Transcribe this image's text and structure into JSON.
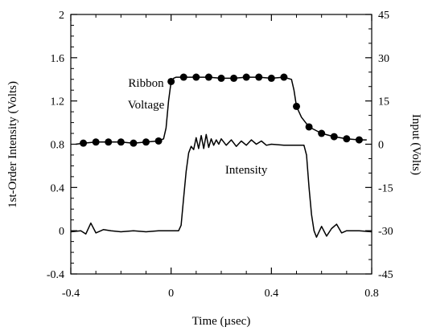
{
  "chart_data": {
    "type": "line",
    "xlabel": "Time (µsec)",
    "ylabel": "1st-Order Intensity (Volts)",
    "y2label": "Input (Volts)",
    "xlim": [
      -0.4,
      0.8
    ],
    "ylim": [
      -0.4,
      2.0
    ],
    "y2lim": [
      -45,
      45
    ],
    "x_ticks": [
      -0.4,
      0,
      0.4,
      0.8
    ],
    "x_tick_labels": [
      "-0.4",
      "0",
      "0.4",
      "0.8"
    ],
    "y_ticks": [
      -0.4,
      0,
      0.4,
      0.8,
      1.2,
      1.6,
      2.0
    ],
    "y_tick_labels": [
      "-0.4",
      "0",
      "0.4",
      "0.8",
      "1.2",
      "1.6",
      "2"
    ],
    "y2_ticks": [
      -45,
      -30,
      -15,
      0,
      15,
      30,
      45
    ],
    "y2_tick_labels": [
      "-45",
      "-30",
      "-15",
      "0",
      "15",
      "30",
      "45"
    ],
    "grid": false,
    "annotations": [
      {
        "text": "Ribbon",
        "x": -0.1,
        "y": 1.33
      },
      {
        "text": "Voltage",
        "x": -0.1,
        "y": 1.13
      },
      {
        "text": "Intensity",
        "x": 0.3,
        "y": 0.53
      }
    ],
    "series": [
      {
        "name": "Ribbon Voltage",
        "axis": "left",
        "marker": "circle",
        "x": [
          -0.38,
          -0.35,
          -0.3,
          -0.25,
          -0.2,
          -0.15,
          -0.1,
          -0.05,
          -0.03,
          -0.02,
          -0.01,
          0.0,
          0.01,
          0.02,
          0.05,
          0.1,
          0.15,
          0.2,
          0.25,
          0.3,
          0.35,
          0.4,
          0.45,
          0.48,
          0.49,
          0.5,
          0.52,
          0.55,
          0.6,
          0.65,
          0.7,
          0.75,
          0.78
        ],
        "y": [
          0.8,
          0.81,
          0.82,
          0.82,
          0.82,
          0.81,
          0.82,
          0.83,
          0.85,
          0.95,
          1.2,
          1.38,
          1.41,
          1.42,
          1.42,
          1.42,
          1.42,
          1.41,
          1.41,
          1.42,
          1.42,
          1.41,
          1.42,
          1.4,
          1.3,
          1.15,
          1.05,
          0.96,
          0.9,
          0.87,
          0.85,
          0.84,
          0.84
        ]
      },
      {
        "name": "Intensity",
        "axis": "left",
        "marker": "none",
        "x": [
          -0.4,
          -0.36,
          -0.34,
          -0.32,
          -0.3,
          -0.27,
          -0.24,
          -0.2,
          -0.15,
          -0.1,
          -0.05,
          0.0,
          0.03,
          0.04,
          0.05,
          0.06,
          0.07,
          0.08,
          0.09,
          0.1,
          0.11,
          0.12,
          0.13,
          0.14,
          0.15,
          0.16,
          0.17,
          0.18,
          0.19,
          0.2,
          0.22,
          0.24,
          0.26,
          0.28,
          0.3,
          0.32,
          0.34,
          0.36,
          0.38,
          0.4,
          0.45,
          0.5,
          0.53,
          0.54,
          0.55,
          0.56,
          0.57,
          0.58,
          0.6,
          0.62,
          0.64,
          0.66,
          0.68,
          0.7,
          0.75,
          0.8
        ],
        "y": [
          -0.01,
          0.0,
          -0.03,
          0.07,
          -0.02,
          0.01,
          0.0,
          -0.01,
          0.0,
          -0.01,
          0.0,
          0.0,
          0.0,
          0.05,
          0.3,
          0.55,
          0.72,
          0.78,
          0.75,
          0.86,
          0.76,
          0.88,
          0.76,
          0.89,
          0.77,
          0.85,
          0.79,
          0.84,
          0.8,
          0.85,
          0.79,
          0.84,
          0.78,
          0.83,
          0.79,
          0.84,
          0.8,
          0.83,
          0.79,
          0.8,
          0.79,
          0.79,
          0.79,
          0.7,
          0.4,
          0.15,
          0.0,
          -0.06,
          0.04,
          -0.05,
          0.02,
          0.06,
          -0.02,
          0.0,
          0.0,
          -0.01
        ]
      }
    ]
  }
}
